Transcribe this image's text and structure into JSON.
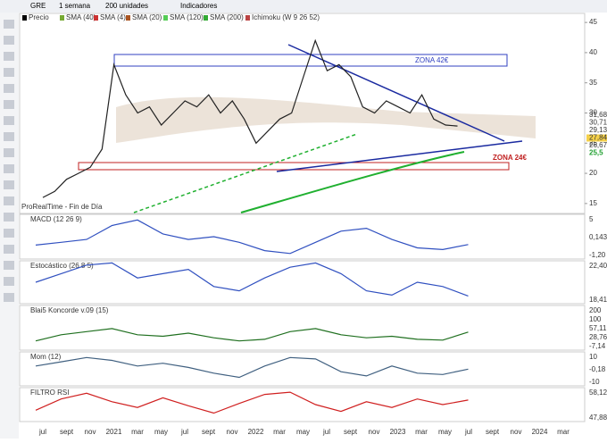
{
  "toolbar": {
    "symbol": "GRE",
    "period": "1 semana",
    "units": "200 unidades",
    "indicators": "Indicadores"
  },
  "legend": [
    "Precio",
    "SMA (40)",
    "SMA (4)",
    "SMA (20)",
    "SMA (120)",
    "SMA (200)",
    "Ichimoku (W 9 26 52)"
  ],
  "main_chart": {
    "yticks": [
      45,
      40,
      35,
      30,
      25,
      20,
      15
    ],
    "ylim": [
      13.5,
      46.5
    ],
    "price": [
      16,
      17,
      19,
      20,
      21,
      24,
      38,
      33,
      30,
      31,
      28,
      30,
      32,
      31,
      33,
      30,
      32,
      29,
      25,
      27,
      29,
      30,
      36,
      42,
      37,
      38,
      36,
      31,
      30,
      32,
      31,
      30,
      33,
      29,
      28,
      27.84
    ],
    "zone_high": "ZONA 42€",
    "zone_low": "ZONA 24€",
    "footer": "ProRealTime - Fin de Día",
    "right_labels": [
      "31,68",
      "30,71",
      "29,13",
      "27,84",
      "26,67",
      "25,5"
    ]
  },
  "panels": [
    {
      "label": "MACD (12 26 9)",
      "range": [
        -2.5,
        5.5
      ],
      "values": [
        0,
        0.5,
        1,
        3.5,
        4.5,
        2,
        1,
        1.5,
        0.5,
        -1,
        -1.5,
        0.5,
        2.5,
        3,
        1,
        -0.5,
        -0.8,
        0.1
      ],
      "right_labels": [
        "5",
        "0,143",
        "-1,20"
      ]
    },
    {
      "label": "Estocástico (26 8 5)",
      "range": [
        0,
        100
      ],
      "values": [
        50,
        70,
        90,
        95,
        60,
        70,
        80,
        40,
        30,
        60,
        85,
        95,
        70,
        30,
        20,
        50,
        40,
        18
      ],
      "right_labels": [
        "22,40",
        "18,41"
      ]
    },
    {
      "label": "Blai5 Koncorde v.09 (15)",
      "range": [
        -60,
        230
      ],
      "values": [
        0,
        40,
        60,
        80,
        40,
        30,
        50,
        20,
        0,
        10,
        60,
        80,
        40,
        20,
        30,
        10,
        5,
        57
      ],
      "right_labels": [
        "200",
        "100",
        "57,11",
        "28,76",
        "-7,14"
      ]
    },
    {
      "label": "Mom (12)",
      "range": [
        -12,
        12
      ],
      "values": [
        2,
        5,
        8,
        6,
        2,
        4,
        1,
        -3,
        -6,
        2,
        8,
        7,
        -2,
        -5,
        2,
        -3,
        -4,
        -0.18
      ],
      "right_labels": [
        "10",
        "-0,18",
        "-10"
      ]
    },
    {
      "label": "FILTRO RSI",
      "range": [
        20,
        80
      ],
      "values": [
        40,
        60,
        70,
        55,
        45,
        62,
        48,
        35,
        52,
        68,
        72,
        50,
        38,
        55,
        45,
        60,
        50,
        58
      ],
      "right_labels": [
        "58,12",
        "47,88"
      ]
    }
  ],
  "x_axis": [
    "jul",
    "sept",
    "nov",
    "2021",
    "mar",
    "may",
    "jul",
    "sept",
    "nov",
    "2022",
    "mar",
    "may",
    "jul",
    "sept",
    "nov",
    "2023",
    "mar",
    "may",
    "jul",
    "sept",
    "nov",
    "2024",
    "mar"
  ]
}
